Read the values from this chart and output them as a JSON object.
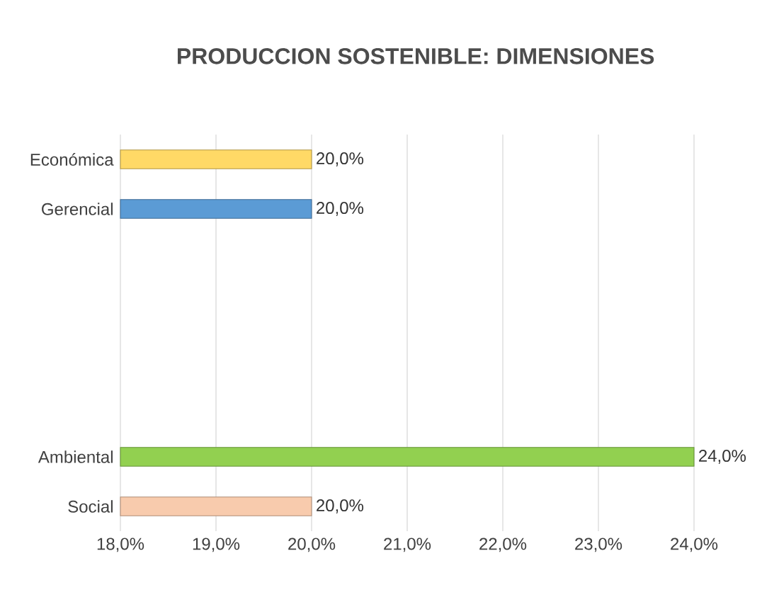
{
  "chart_data": {
    "type": "bar",
    "orientation": "horizontal",
    "title": "PRODUCCION SOSTENIBLE: DIMENSIONES",
    "categories": [
      "Económica",
      "Gerencial",
      null,
      null,
      null,
      null,
      "Ambiental",
      "Social"
    ],
    "values": [
      20,
      20,
      null,
      null,
      null,
      null,
      24,
      20
    ],
    "colors": [
      "#ffd966",
      "#5b9bd5",
      "#a5a5a5",
      "#a5a5a5",
      "#a5a5a5",
      "#a5a5a5",
      "#92d050",
      "#f8cbad"
    ],
    "value_labels": [
      "20,0%",
      "20,0%",
      null,
      null,
      null,
      null,
      "24,0%",
      "20,0%"
    ],
    "xlim": [
      18,
      24
    ],
    "xticks": [
      {
        "value": 18,
        "label": "18,0%"
      },
      {
        "value": 19,
        "label": "19,0%"
      },
      {
        "value": 20,
        "label": "20,0%"
      },
      {
        "value": 21,
        "label": "21,0%"
      },
      {
        "value": 22,
        "label": "22,0%"
      },
      {
        "value": 23,
        "label": "23,0%"
      },
      {
        "value": 24,
        "label": "24,0%"
      }
    ],
    "grid": "x"
  }
}
